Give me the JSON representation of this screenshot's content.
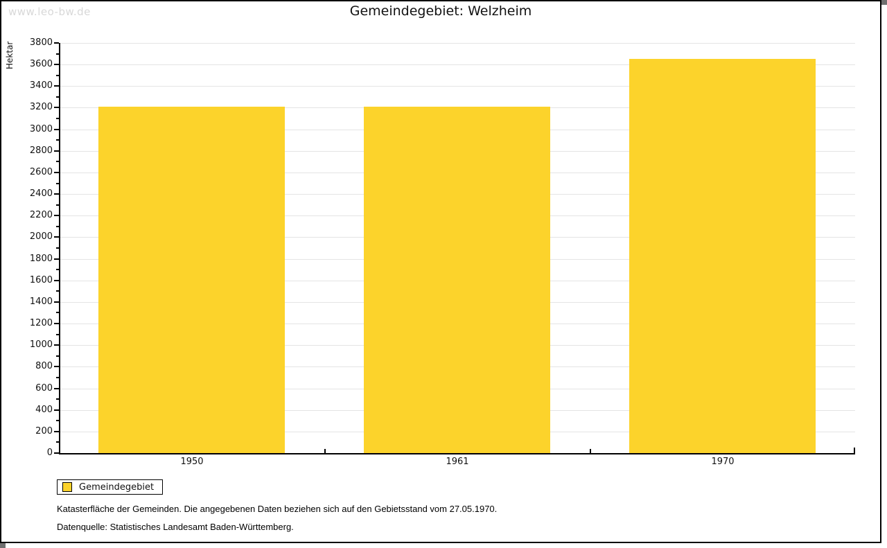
{
  "watermark": "www.leo-bw.de",
  "title": "Gemeindegebiet: Welzheim",
  "chart_data": {
    "type": "bar",
    "title": "Gemeindegebiet: Welzheim",
    "xlabel": "",
    "ylabel": "Hektar",
    "categories": [
      "1950",
      "1961",
      "1970"
    ],
    "series": [
      {
        "name": "Gemeindegebiet",
        "values": [
          3210,
          3210,
          3655
        ]
      }
    ],
    "ylim": [
      0,
      3800
    ],
    "ytick_major": 200,
    "ytick_minor": 100,
    "grid": "horizontal-major",
    "legend_position": "bottom-left"
  },
  "legend": {
    "items": [
      {
        "label": "Gemeindegebiet",
        "color": "#FCD32B"
      }
    ]
  },
  "footer": {
    "line1": "Katasterfläche der Gemeinden. Die angegebenen Daten beziehen sich auf den Gebietsstand vom 27.05.1970.",
    "line2": "Datenquelle: Statistisches Landesamt Baden-Württemberg."
  },
  "colors": {
    "bar": "#FCD32B",
    "grid": "#E4E4E4",
    "axis": "#000000",
    "shadow": "#6F6F6F",
    "watermark": "#D8D8D8",
    "background": "#FFFFFF"
  }
}
